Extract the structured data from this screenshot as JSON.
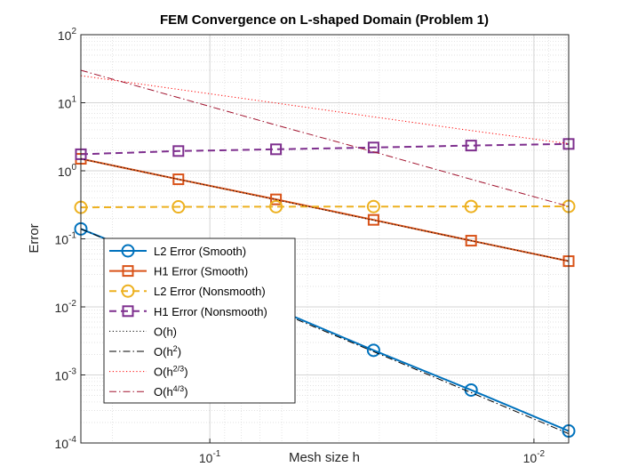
{
  "chart_data": {
    "type": "line",
    "title": "FEM Convergence on L-shaped Domain (Problem 1)",
    "xlabel": "Mesh size h",
    "ylabel": "Error",
    "xscale": "log",
    "yscale": "log",
    "x_direction": "reversed",
    "xlim": [
      0.25,
      0.0078125
    ],
    "ylim": [
      0.0001,
      100
    ],
    "grid": true,
    "minor_grid": true,
    "legend_position": "bottom-left",
    "x_ticks": [
      {
        "value": 0.1,
        "base": "10",
        "exp": "-1"
      },
      {
        "value": 0.01,
        "base": "10",
        "exp": "-2"
      }
    ],
    "y_ticks": [
      {
        "value": 0.0001,
        "base": "10",
        "exp": "-4"
      },
      {
        "value": 0.001,
        "base": "10",
        "exp": "-3"
      },
      {
        "value": 0.01,
        "base": "10",
        "exp": "-2"
      },
      {
        "value": 0.1,
        "base": "10",
        "exp": "-1"
      },
      {
        "value": 1,
        "base": "10",
        "exp": "0"
      },
      {
        "value": 10,
        "base": "10",
        "exp": "1"
      },
      {
        "value": 100,
        "base": "10",
        "exp": "2"
      }
    ],
    "x": [
      0.25,
      0.125,
      0.0625,
      0.03125,
      0.015625,
      0.0078125
    ],
    "series": [
      {
        "name": "L2 Error (Smooth)",
        "legend_parts": [
          {
            "t": "L2 Error (Smooth)"
          }
        ],
        "color": "#0072BD",
        "marker": "circle",
        "dash": "solid",
        "width": 2,
        "values": [
          0.14,
          0.037,
          0.0093,
          0.0023,
          0.0006,
          0.00015
        ]
      },
      {
        "name": "H1 Error (Smooth)",
        "legend_parts": [
          {
            "t": "H1 Error (Smooth)"
          }
        ],
        "color": "#D95319",
        "marker": "square",
        "dash": "solid",
        "width": 2,
        "values": [
          1.5,
          0.75,
          0.38,
          0.19,
          0.094,
          0.047
        ]
      },
      {
        "name": "L2 Error (Nonsmooth)",
        "legend_parts": [
          {
            "t": "L2 Error (Nonsmooth)"
          }
        ],
        "color": "#EDB120",
        "marker": "circle",
        "dash": "dashed",
        "width": 2,
        "values": [
          0.29,
          0.295,
          0.297,
          0.298,
          0.299,
          0.3
        ]
      },
      {
        "name": "H1 Error (Nonsmooth)",
        "legend_parts": [
          {
            "t": "H1 Error (Nonsmooth)"
          }
        ],
        "color": "#7E2F8E",
        "marker": "square",
        "dash": "dashed",
        "width": 2,
        "values": [
          1.75,
          1.95,
          2.07,
          2.2,
          2.35,
          2.48
        ]
      },
      {
        "name": "O(h)",
        "legend_parts": [
          {
            "t": "O(h)"
          }
        ],
        "color": "#000000",
        "marker": "none",
        "dash": "dotted",
        "width": 1,
        "values": [
          1.5,
          0.75,
          0.375,
          0.1875,
          0.094,
          0.047
        ]
      },
      {
        "name": "O(h^2)",
        "legend_parts": [
          {
            "t": "O(h"
          },
          {
            "t": "2",
            "sup": true
          },
          {
            "t": ")"
          }
        ],
        "color": "#000000",
        "marker": "none",
        "dash": "dashdot",
        "width": 1,
        "values": [
          0.14,
          0.035,
          0.00875,
          0.0022,
          0.00055,
          0.000137
        ]
      },
      {
        "name": "O(h^2/3)",
        "legend_parts": [
          {
            "t": "O(h"
          },
          {
            "t": "2/3",
            "sup": true
          },
          {
            "t": ")"
          }
        ],
        "color": "#FF0000",
        "marker": "none",
        "dash": "dotted",
        "width": 1,
        "values": [
          25,
          15.7,
          9.9,
          6.2,
          3.9,
          2.5
        ]
      },
      {
        "name": "O(h^4/3)",
        "legend_parts": [
          {
            "t": "O(h"
          },
          {
            "t": "4/3",
            "sup": true
          },
          {
            "t": ")"
          }
        ],
        "color": "#A2142F",
        "marker": "none",
        "dash": "dashdot",
        "width": 1,
        "values": [
          30,
          11.9,
          4.7,
          1.9,
          0.75,
          0.3
        ]
      }
    ]
  }
}
